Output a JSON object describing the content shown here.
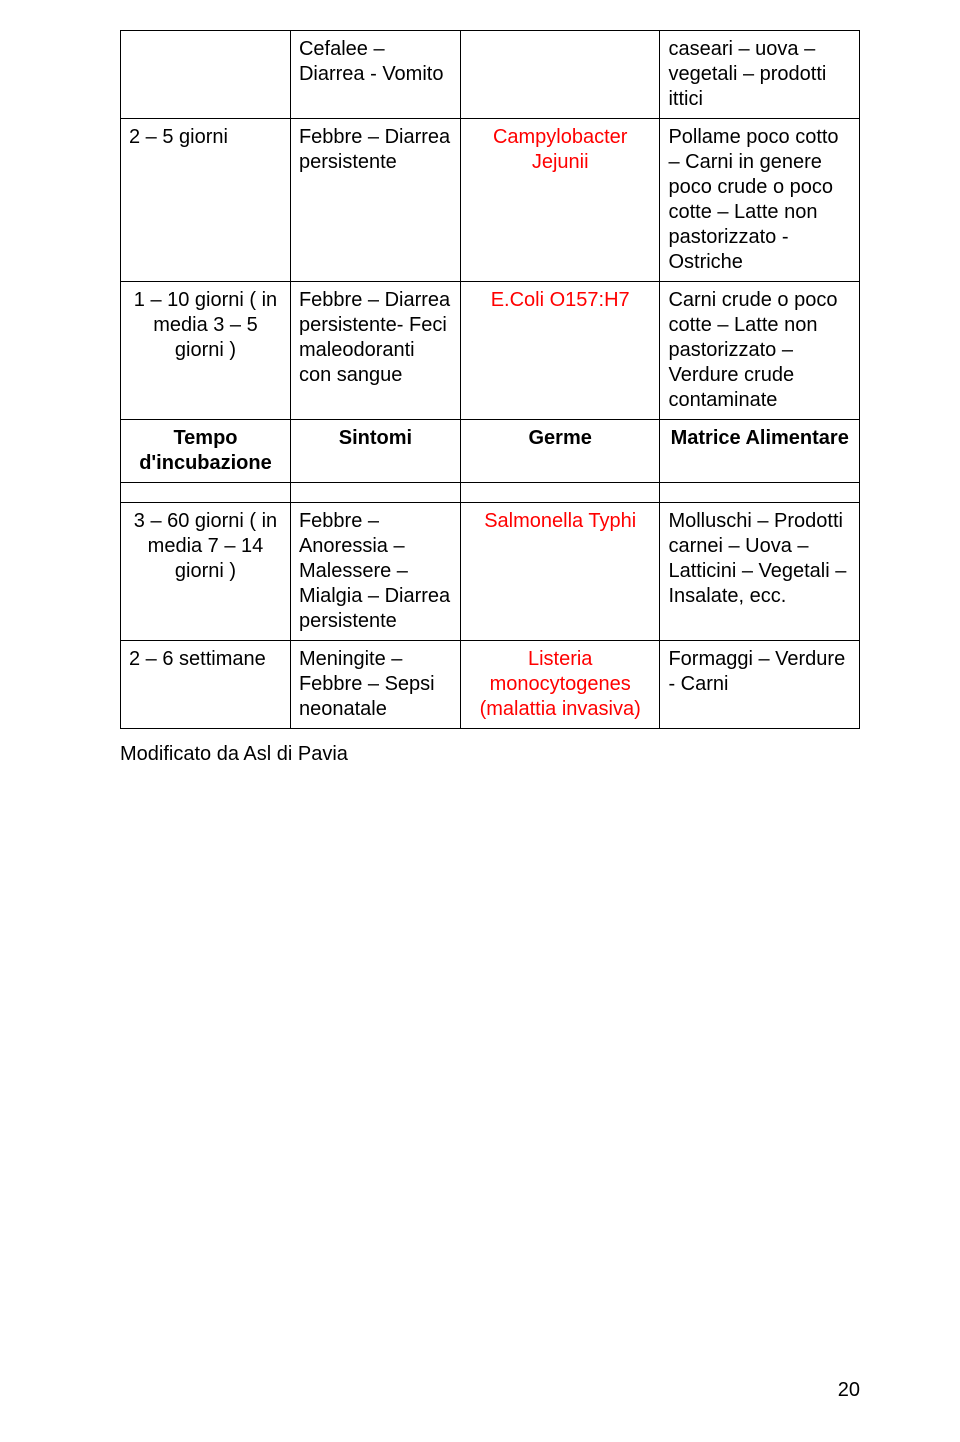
{
  "colors": {
    "black": "#000000",
    "red": "#ff0000",
    "background": "#ffffff"
  },
  "typography": {
    "font_family": "Arial",
    "cell_fontsize": 20,
    "line_height": 1.25
  },
  "table": {
    "column_widths_pct": [
      23,
      23,
      27,
      27
    ],
    "rows": [
      {
        "c1": "",
        "c2": "Cefalee – Diarrea - Vomito",
        "c3": "",
        "c4": "caseari – uova – vegetali – prodotti ittici"
      },
      {
        "c1": "2 – 5 giorni",
        "c2": "Febbre – Diarrea persistente",
        "c3": "Campylobacter Jejunii",
        "c3_style": "red center",
        "c4": "Pollame poco cotto – Carni in genere poco crude o poco cotte – Latte non pastorizzato - Ostriche"
      },
      {
        "c1": "1 – 10 giorni ( in media 3 – 5 giorni )",
        "c1_style": "center",
        "c2": "Febbre – Diarrea persistente- Feci maleodoranti con sangue",
        "c3": "E.Coli O157:H7",
        "c3_style": "red center",
        "c4": "Carni crude o poco cotte – Latte non pastorizzato – Verdure crude contaminate"
      },
      {
        "c1": "Tempo d'incubazione",
        "c1_style": "bold center",
        "c2": "Sintomi",
        "c2_style": "bold center",
        "c3": "Germe",
        "c3_style": "bold center",
        "c4": "Matrice Alimentare",
        "c4_style": "bold center"
      },
      {
        "empty": true
      },
      {
        "c1": "3 – 60 giorni ( in media 7 – 14 giorni )",
        "c1_style": "center",
        "c2": "Febbre – Anoressia – Malessere – Mialgia – Diarrea persistente",
        "c3": "Salmonella Typhi",
        "c3_style": "red center",
        "c4": "Molluschi – Prodotti carnei – Uova – Latticini – Vegetali – Insalate, ecc."
      },
      {
        "c1": "2 – 6 settimane",
        "c2": "Meningite – Febbre – Sepsi neonatale",
        "c3": "Listeria monocytogenes (malattia invasiva)",
        "c3_style": "red center",
        "c4": "Formaggi – Verdure - Carni"
      }
    ]
  },
  "footer_note": "Modificato da Asl di Pavia",
  "page_number": "20"
}
